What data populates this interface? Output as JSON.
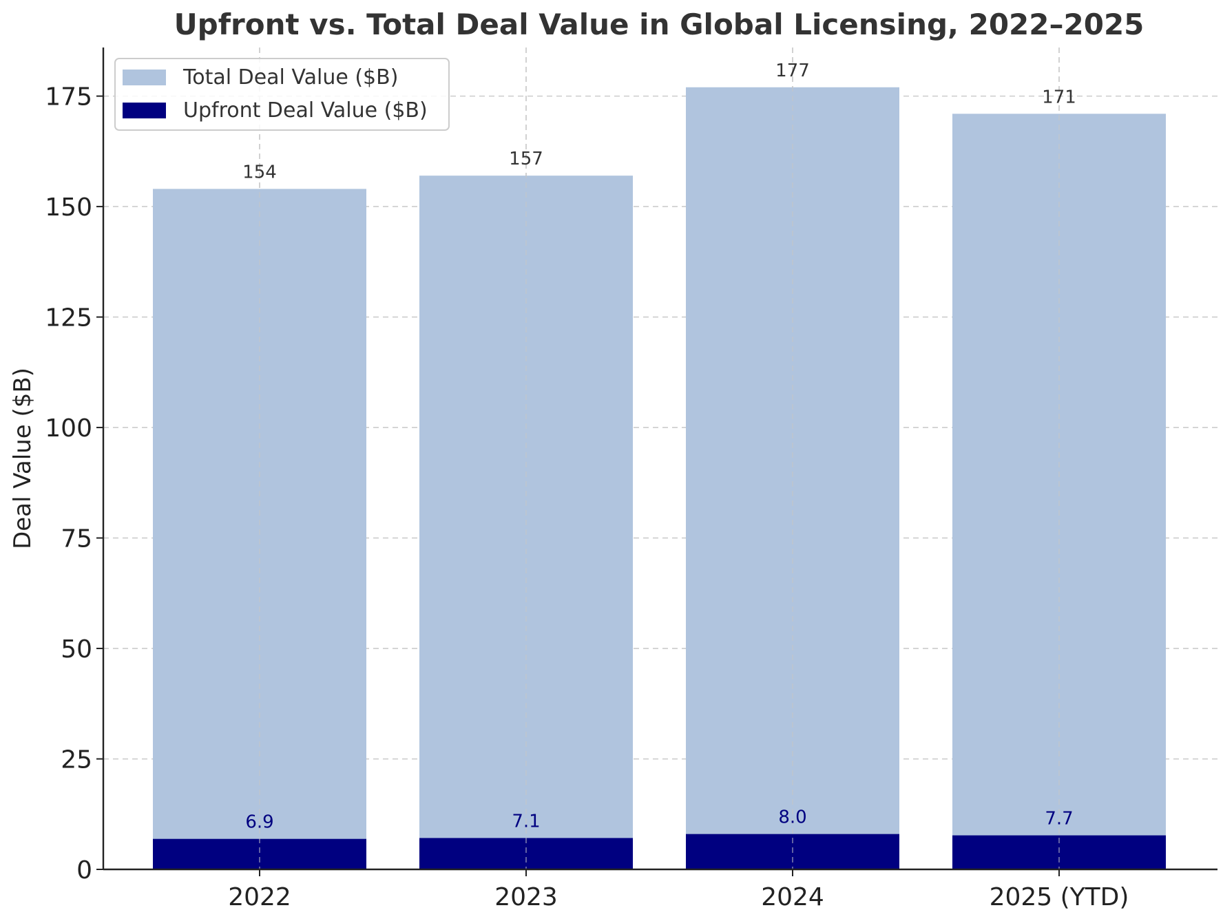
{
  "chart_data": {
    "type": "bar",
    "title": "Upfront vs. Total Deal Value in Global Licensing, 2022–2025",
    "xlabel": "",
    "ylabel": "Deal Value ($B)",
    "categories": [
      "2022",
      "2023",
      "2024",
      "2025 (YTD)"
    ],
    "series": [
      {
        "name": "Total Deal Value ($B)",
        "values": [
          154,
          157,
          177,
          171
        ],
        "labels": [
          "154",
          "157",
          "177",
          "171"
        ],
        "color": "#B0C4DE",
        "label_color": "#333333"
      },
      {
        "name": "Upfront Deal Value ($B)",
        "values": [
          6.9,
          7.1,
          8.0,
          7.7
        ],
        "labels": [
          "6.9",
          "7.1",
          "8.0",
          "7.7"
        ],
        "color": "#000080",
        "label_color": "#000080"
      }
    ],
    "ylim": [
      0,
      186
    ],
    "yticks": [
      0,
      25,
      50,
      75,
      100,
      125,
      150,
      175
    ],
    "grid": true,
    "legend_position": "top-left",
    "overlay": true
  }
}
